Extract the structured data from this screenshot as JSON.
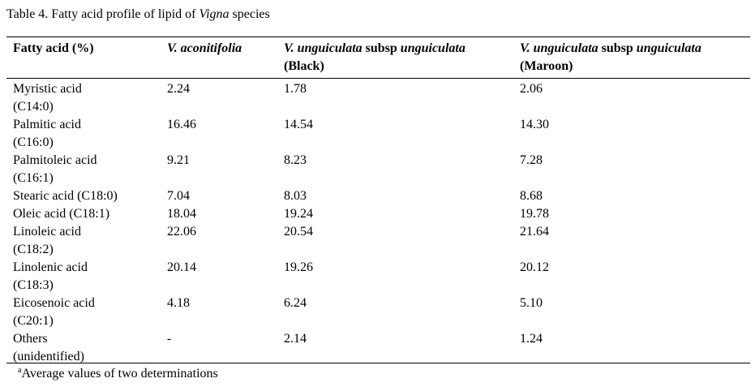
{
  "table": {
    "caption": {
      "prefix": "Table 4. Fatty acid profile of lipid of ",
      "genus": "Vigna",
      "suffix": " species"
    },
    "headers": {
      "col0": "Fatty acid (%)",
      "col1_species": "V. aconitifolia",
      "col2_species": "V. unguiculata",
      "col2_mid": " subsp ",
      "col2_sub": "unguiculata",
      "col2_variety": "(Black)",
      "col3_species": "V. unguiculata",
      "col3_mid": " subsp ",
      "col3_sub": "unguiculata",
      "col3_variety": "(Maroon)"
    },
    "rows": [
      {
        "line1": "Myristic acid",
        "line2": "(C14:0)",
        "v1": "2.24",
        "v2": "1.78",
        "v3": "2.06"
      },
      {
        "line1": "Palmitic acid",
        "line2": "(C16:0)",
        "v1": "16.46",
        "v2": "14.54",
        "v3": "14.30"
      },
      {
        "line1": "Palmitoleic acid",
        "line2": "(C16:1)",
        "v1": "9.21",
        "v2": "8.23",
        "v3": "7.28"
      },
      {
        "line1": "Stearic acid (C18:0)",
        "line2": "",
        "v1": "7.04",
        "v2": "8.03",
        "v3": "8.68"
      },
      {
        "line1": "Oleic acid (C18:1)",
        "line2": "",
        "v1": "18.04",
        "v2": "19.24",
        "v3": "19.78"
      },
      {
        "line1": "Linoleic acid",
        "line2": "(C18:2)",
        "v1": "22.06",
        "v2": "20.54",
        "v3": "21.64"
      },
      {
        "line1": "Linolenic acid",
        "line2": "(C18:3)",
        "v1": "20.14",
        "v2": "19.26",
        "v3": "20.12"
      },
      {
        "line1": "Eicosenoic acid",
        "line2": "(C20:1)",
        "v1": "4.18",
        "v2": "6.24",
        "v3": "5.10"
      },
      {
        "line1": "Others",
        "line2": "(unidentified)",
        "v1": "-",
        "v2": "2.14",
        "v3": "1.24"
      }
    ],
    "footnote": {
      "marker": "a",
      "text": "Average values of two determinations"
    }
  }
}
